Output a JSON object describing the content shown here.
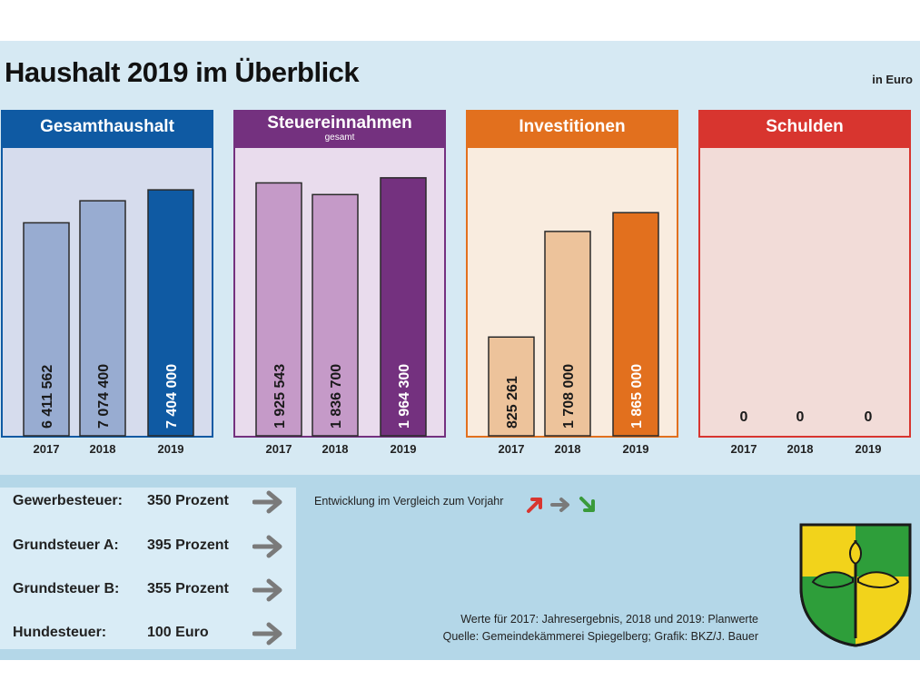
{
  "title": "Haushalt 2019 im Überblick",
  "unit": "in Euro",
  "chart_data": [
    {
      "type": "bar",
      "title": "Gesamthaushalt",
      "subtitle": "",
      "categories": [
        "2017",
        "2018",
        "2019"
      ],
      "values": [
        6411562,
        7074400,
        7404000
      ],
      "value_labels": [
        "6 411 562",
        "7 074 400",
        "7 404 000"
      ],
      "ylim": [
        0,
        8500000
      ],
      "colors": {
        "header": "#0f5aa3",
        "body": "#d6dced",
        "bar": "#98acd1",
        "highlight": "#0f5aa3"
      }
    },
    {
      "type": "bar",
      "title": "Steuereinnahmen",
      "subtitle": "gesamt",
      "categories": [
        "2017",
        "2018",
        "2019"
      ],
      "values": [
        1925543,
        1836700,
        1964300
      ],
      "value_labels": [
        "1 925 543",
        "1 836 700",
        "1 964 300"
      ],
      "ylim": [
        0,
        2150000
      ],
      "colors": {
        "header": "#74317f",
        "body": "#e9dced",
        "bar": "#c59ac8",
        "highlight": "#74317f"
      }
    },
    {
      "type": "bar",
      "title": "Investitionen",
      "subtitle": "",
      "categories": [
        "2017",
        "2018",
        "2019"
      ],
      "values": [
        825261,
        1708000,
        1865000
      ],
      "value_labels": [
        "825 261",
        "1 708 000",
        "1 865 000"
      ],
      "ylim": [
        0,
        2360000
      ],
      "colors": {
        "header": "#e2701e",
        "body": "#f9ecdf",
        "bar": "#edc39b",
        "highlight": "#e2701e"
      }
    },
    {
      "type": "bar",
      "title": "Schulden",
      "subtitle": "",
      "categories": [
        "2017",
        "2018",
        "2019"
      ],
      "values": [
        0,
        0,
        0
      ],
      "value_labels": [
        "0",
        "0",
        "0"
      ],
      "ylim": [
        0,
        1000000
      ],
      "colors": {
        "header": "#d8352f",
        "body": "#f2dcd8",
        "bar": "#f2dcd8",
        "highlight": "#d8352f"
      }
    }
  ],
  "taxes": [
    {
      "label": "Gewerbesteuer:",
      "value": "350 Prozent",
      "trend": "gleich"
    },
    {
      "label": "Grundsteuer A:",
      "value": "395 Prozent",
      "trend": "gleich"
    },
    {
      "label": "Grundsteuer B:",
      "value": "355 Prozent",
      "trend": "gleich"
    },
    {
      "label": "Hundesteuer:",
      "value": "100 Euro",
      "trend": "gleich"
    }
  ],
  "trend_note": "Entwicklung im Vergleich zum Vorjahr",
  "trend_colors": {
    "up": "#d8352f",
    "same": "#7a7a7a",
    "down": "#3a9a3a"
  },
  "footnote": {
    "line1": "Werte für 2017: Jahresergebnis, 2018 und 2019: Planwerte",
    "line2": "Quelle:  Gemeindekämmerei Spiegelberg; Grafik: BKZ/J. Bauer"
  }
}
